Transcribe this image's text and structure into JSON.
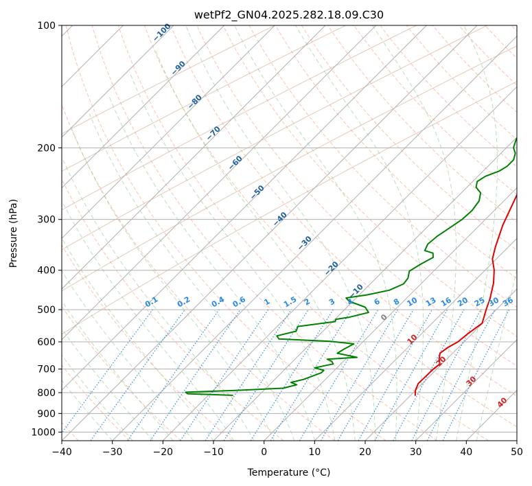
{
  "chart_data": {
    "type": "line",
    "title": "wetPf2_GN04.2025.282.18.09.C30",
    "xlabel": "Temperature (°C)",
    "ylabel": "Pressure (hPa)",
    "xlim": [
      -40,
      50
    ],
    "ylim": [
      1050,
      100
    ],
    "y_scale": "log",
    "x_ticks": [
      -40,
      -30,
      -20,
      -10,
      0,
      10,
      20,
      30,
      40,
      50
    ],
    "x_tick_labels": [
      "−40",
      "−30",
      "−20",
      "−10",
      "0",
      "10",
      "20",
      "30",
      "40",
      "50"
    ],
    "y_ticks": [
      100,
      200,
      300,
      400,
      500,
      600,
      700,
      800,
      900,
      1000
    ],
    "y_tick_labels": [
      "100",
      "200",
      "300",
      "400",
      "500",
      "600",
      "700",
      "800",
      "900",
      "1000"
    ],
    "grid": true,
    "series": [
      {
        "color": "#e00000",
        "points": [
          [
            20.9,
            812
          ],
          [
            20.0,
            790
          ],
          [
            19.2,
            760
          ],
          [
            19.3,
            700
          ],
          [
            19.6,
            680
          ],
          [
            18.4,
            660
          ],
          [
            17.5,
            640
          ],
          [
            17.9,
            620
          ],
          [
            18.8,
            600
          ],
          [
            19.1,
            575
          ],
          [
            19.9,
            540
          ],
          [
            18.0,
            500
          ],
          [
            16.6,
            470
          ],
          [
            14.2,
            430
          ],
          [
            11.8,
            400
          ],
          [
            9.2,
            375
          ],
          [
            7.4,
            350
          ],
          [
            4.6,
            310
          ],
          [
            2.7,
            280
          ],
          [
            0.6,
            250
          ],
          [
            -1.0,
            220
          ],
          [
            -1.2,
            205
          ],
          [
            0.3,
            195
          ],
          [
            2.3,
            188
          ],
          [
            4.7,
            180
          ],
          [
            5.8,
            170
          ],
          [
            6.9,
            155
          ],
          [
            7.7,
            140
          ],
          [
            9.5,
            128
          ],
          [
            11.2,
            120
          ],
          [
            13.3,
            112
          ],
          [
            14.7,
            106
          ],
          [
            15.7,
            100
          ]
        ]
      },
      {
        "color": "#008000",
        "points": [
          [
            -15.2,
            812
          ],
          [
            -24.4,
            805
          ],
          [
            -25.1,
            798
          ],
          [
            -15.6,
            790
          ],
          [
            -6.6,
            780
          ],
          [
            -4.6,
            765
          ],
          [
            -6.2,
            755
          ],
          [
            -4.3,
            742
          ],
          [
            -2.1,
            715
          ],
          [
            -2.1,
            705
          ],
          [
            -4.4,
            695
          ],
          [
            -1.5,
            680
          ],
          [
            -2.3,
            670
          ],
          [
            -3.6,
            662
          ],
          [
            1.9,
            655
          ],
          [
            -2.8,
            640
          ],
          [
            -2.3,
            625
          ],
          [
            -1.4,
            607
          ],
          [
            -6.6,
            598
          ],
          [
            -17.2,
            590
          ],
          [
            -18.2,
            580
          ],
          [
            -15.3,
            565
          ],
          [
            -15.9,
            550
          ],
          [
            -9.5,
            535
          ],
          [
            -9.8,
            528
          ],
          [
            -7.6,
            522
          ],
          [
            -4.7,
            508
          ],
          [
            -6.4,
            493
          ],
          [
            -10.7,
            477
          ],
          [
            -12.0,
            468
          ],
          [
            -8.5,
            460
          ],
          [
            -5.0,
            448
          ],
          [
            -3.4,
            432
          ],
          [
            -3.7,
            418
          ],
          [
            -4.8,
            402
          ],
          [
            -3.9,
            386
          ],
          [
            -2.8,
            372
          ],
          [
            -3.7,
            363
          ],
          [
            -5.8,
            358
          ],
          [
            -6.5,
            345
          ],
          [
            -6.2,
            330
          ],
          [
            -5.4,
            315
          ],
          [
            -4.6,
            300
          ],
          [
            -4.4,
            285
          ],
          [
            -4.9,
            270
          ],
          [
            -6.2,
            258
          ],
          [
            -8.2,
            250
          ],
          [
            -9.1,
            242
          ],
          [
            -8.5,
            235
          ],
          [
            -6.8,
            228
          ],
          [
            -6.2,
            222
          ],
          [
            -6.2,
            214
          ],
          [
            -7.2,
            206
          ],
          [
            -8.6,
            200
          ],
          [
            -9.8,
            190
          ],
          [
            -10.1,
            178
          ],
          [
            -9.9,
            168
          ],
          [
            -8.9,
            155
          ],
          [
            -7.6,
            140
          ],
          [
            -5.8,
            128
          ],
          [
            -3.8,
            118
          ],
          [
            -1.6,
            110
          ],
          [
            0.6,
            103
          ],
          [
            1.3,
            100
          ]
        ]
      }
    ],
    "dry_adiabat_labels": [
      "−100",
      "−90",
      "−80",
      "−70",
      "−60",
      "−50",
      "−40",
      "−30",
      "−20",
      "−10"
    ],
    "mixing_ratio_labels": [
      "0.1",
      "0.2",
      "0.4",
      "0.6",
      "1",
      "1.5",
      "2",
      "3",
      "4",
      "6",
      "8",
      "10",
      "13",
      "16",
      "20",
      "25",
      "30",
      "36"
    ],
    "moist_adiabat_labels": [
      "0",
      "10",
      "20",
      "30",
      "40"
    ],
    "colors": {
      "temperature": "#e00000",
      "dewpoint": "#008000",
      "isobar_grid": "#b0b0b0",
      "dry_adiabat_label": "#1f5fa0",
      "mixing_ratio": "#2a8ae0",
      "moist_adiabat_label": "#d02020",
      "dry_adiabat_line": "#ff8c69",
      "moist_adiabat_line": "#7fc47f",
      "isentrope": "#c8a080"
    }
  }
}
